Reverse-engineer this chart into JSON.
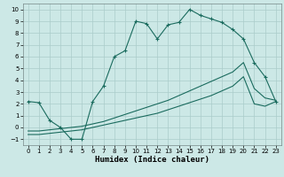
{
  "xlabel": "Humidex (Indice chaleur)",
  "bg_color": "#cce8e6",
  "grid_color": "#aaccca",
  "line_color": "#1a6b5e",
  "xlim": [
    -0.5,
    23.5
  ],
  "ylim": [
    -1.5,
    10.5
  ],
  "xticks": [
    0,
    1,
    2,
    3,
    4,
    5,
    6,
    7,
    8,
    9,
    10,
    11,
    12,
    13,
    14,
    15,
    16,
    17,
    18,
    19,
    20,
    21,
    22,
    23
  ],
  "yticks": [
    -1,
    0,
    1,
    2,
    3,
    4,
    5,
    6,
    7,
    8,
    9,
    10
  ],
  "line1_x": [
    0,
    1,
    2,
    3,
    4,
    5,
    6,
    7,
    8,
    9,
    10,
    11,
    12,
    13,
    14,
    15,
    16,
    17,
    18,
    19,
    20,
    21,
    22,
    23
  ],
  "line1_y": [
    2.2,
    2.1,
    0.6,
    0.0,
    -1.0,
    -1.0,
    2.2,
    3.5,
    6.0,
    6.5,
    9.0,
    8.8,
    7.5,
    8.7,
    8.9,
    10.0,
    9.5,
    9.2,
    8.9,
    8.3,
    7.5,
    5.5,
    4.3,
    2.2
  ],
  "line2_x": [
    0,
    23
  ],
  "line2_y": [
    -0.3,
    2.3
  ],
  "line2_mid_x": [
    20
  ],
  "line2_mid_y": [
    5.5
  ],
  "line3_x": [
    0,
    23
  ],
  "line3_y": [
    -0.6,
    2.2
  ],
  "line3_mid_x": [
    20
  ],
  "line3_mid_y": [
    4.3
  ],
  "line2_full_x": [
    0,
    1,
    2,
    3,
    4,
    5,
    6,
    7,
    8,
    9,
    10,
    11,
    12,
    13,
    14,
    15,
    16,
    17,
    18,
    19,
    20,
    21,
    22,
    23
  ],
  "line2_full_y": [
    -0.3,
    -0.3,
    -0.2,
    -0.1,
    0.0,
    0.1,
    0.3,
    0.5,
    0.8,
    1.1,
    1.4,
    1.7,
    2.0,
    2.3,
    2.7,
    3.1,
    3.5,
    3.9,
    4.3,
    4.7,
    5.5,
    3.3,
    2.5,
    2.3
  ],
  "line3_full_x": [
    0,
    1,
    2,
    3,
    4,
    5,
    6,
    7,
    8,
    9,
    10,
    11,
    12,
    13,
    14,
    15,
    16,
    17,
    18,
    19,
    20,
    21,
    22,
    23
  ],
  "line3_full_y": [
    -0.6,
    -0.6,
    -0.5,
    -0.4,
    -0.3,
    -0.2,
    0.0,
    0.2,
    0.4,
    0.6,
    0.8,
    1.0,
    1.2,
    1.5,
    1.8,
    2.1,
    2.4,
    2.7,
    3.1,
    3.5,
    4.3,
    2.0,
    1.8,
    2.2
  ]
}
